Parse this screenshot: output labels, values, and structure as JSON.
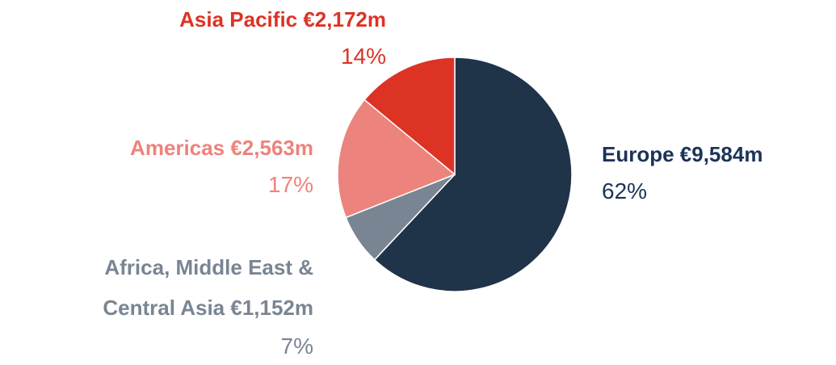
{
  "chart_data": {
    "type": "pie",
    "categories": [
      "Europe €9,584m",
      "Africa, Middle East & Central Asia €1,152m",
      "Americas €2,563m",
      "Asia Pacific €2,172m"
    ],
    "values": [
      62,
      7,
      17,
      14
    ],
    "value_labels": [
      "62%",
      "7%",
      "17%",
      "14%"
    ],
    "colors": [
      "#1f3349",
      "#7a8593",
      "#ec837c",
      "#dc3325"
    ],
    "label_colors": [
      "#1c3358",
      "#7a8593",
      "#ec837c",
      "#dc3325"
    ]
  }
}
